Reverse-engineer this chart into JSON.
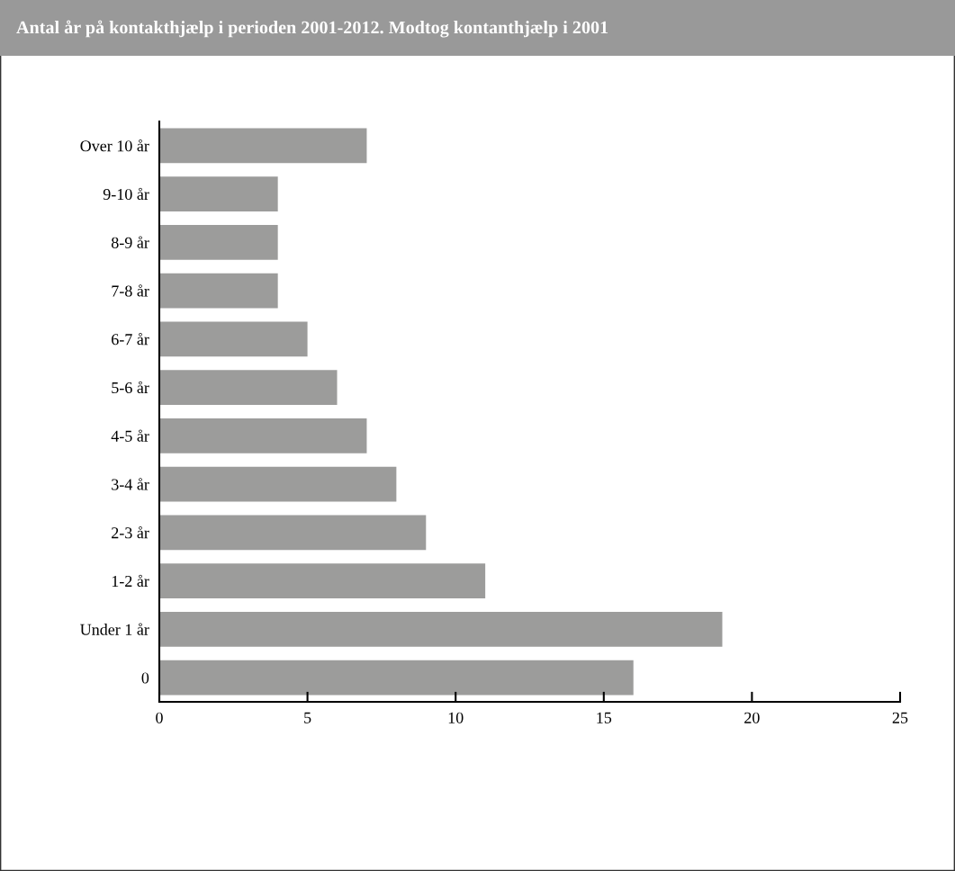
{
  "chart_data": {
    "type": "bar",
    "orientation": "horizontal",
    "title": "Antal år på kontakthjælp i perioden 2001-2012. Modtog kontanthjælp i 2001",
    "categories": [
      "Over 10 år",
      "9-10 år",
      "8-9 år",
      "7-8 år",
      "6-7 år",
      "5-6 år",
      "4-5 år",
      "3-4 år",
      "2-3 år",
      "1-2 år",
      "Under 1 år",
      "0"
    ],
    "values": [
      7,
      4,
      4,
      4,
      5,
      6,
      7,
      8,
      9,
      11,
      19,
      16
    ],
    "color": "#9c9c9b",
    "xlim": [
      0,
      25
    ],
    "xticks": [
      0,
      5,
      10,
      15,
      20,
      25
    ],
    "grid": false
  }
}
